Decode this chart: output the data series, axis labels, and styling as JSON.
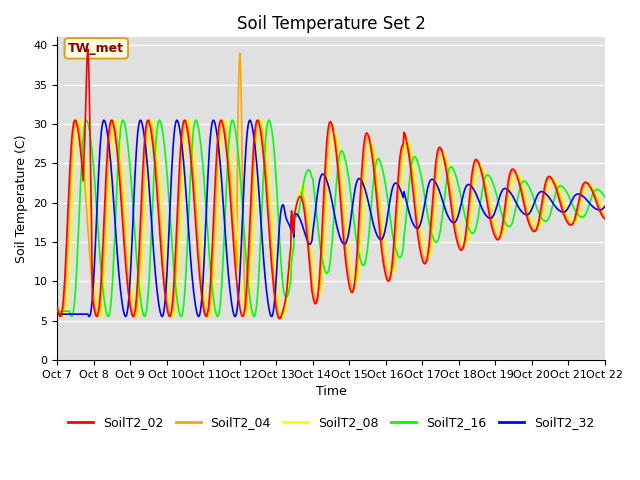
{
  "title": "Soil Temperature Set 2",
  "xlabel": "Time",
  "ylabel": "Soil Temperature (C)",
  "ylim": [
    0,
    41
  ],
  "annotation": "TW_met",
  "series_names": [
    "SoilT2_02",
    "SoilT2_04",
    "SoilT2_08",
    "SoilT2_16",
    "SoilT2_32"
  ],
  "series_colors": [
    "red",
    "orange",
    "yellow",
    "lime",
    "blue"
  ],
  "xtick_labels": [
    "Oct 7",
    "Oct 8",
    "Oct 9",
    "Oct 10",
    "Oct 11",
    "Oct 12",
    "Oct 13",
    "Oct 14",
    "Oct 15",
    "Oct 16",
    "Oct 17",
    "Oct 18",
    "Oct 19",
    "Oct 20",
    "Oct 21",
    "Oct 22"
  ],
  "ytick_values": [
    0,
    5,
    10,
    15,
    20,
    25,
    30,
    35,
    40
  ],
  "background_color": "#e0e0e0",
  "title_fontsize": 12,
  "axis_fontsize": 9,
  "tick_fontsize": 8
}
